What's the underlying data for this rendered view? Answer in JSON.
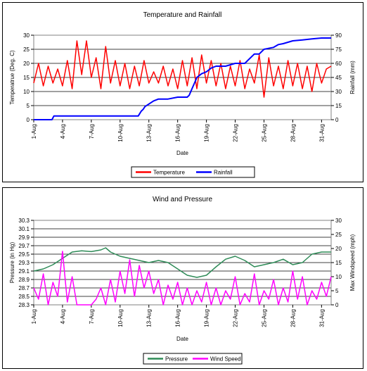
{
  "chart_data": [
    {
      "type": "line",
      "title": "Temperature and Rainfall",
      "xlabel": "Date",
      "ylabel": "Temperatrue (Deg. C)",
      "y2label": "Rainfall (mm)",
      "x_tick_labels": [
        "1-Aug",
        "4-Aug",
        "7-Aug",
        "10-Aug",
        "13-Aug",
        "16-Aug",
        "19-Aug",
        "22-Aug",
        "25-Aug",
        "28-Aug",
        "31-Aug"
      ],
      "x_tick_days": [
        1,
        4,
        7,
        10,
        13,
        16,
        19,
        22,
        25,
        28,
        31
      ],
      "xlim": [
        1,
        32
      ],
      "ylim": [
        0,
        30
      ],
      "y_ticks": [
        0,
        5,
        10,
        15,
        20,
        25,
        30
      ],
      "y2lim": [
        0,
        90
      ],
      "y2_ticks": [
        0,
        15,
        30,
        45,
        60,
        75,
        90
      ],
      "grid": true,
      "legend": "bottom",
      "series": [
        {
          "name": "Temperature",
          "axis": "left",
          "color": "#ff0000",
          "x": [
            1.0,
            1.5,
            2.0,
            2.5,
            3.0,
            3.5,
            4.0,
            4.5,
            5.0,
            5.5,
            6.0,
            6.5,
            7.0,
            7.5,
            8.0,
            8.5,
            9.0,
            9.5,
            10.0,
            10.5,
            11.0,
            11.5,
            12.0,
            12.5,
            13.0,
            13.5,
            14.0,
            14.5,
            15.0,
            15.5,
            16.0,
            16.5,
            17.0,
            17.5,
            18.0,
            18.5,
            19.0,
            19.5,
            20.0,
            20.5,
            21.0,
            21.5,
            22.0,
            22.5,
            23.0,
            23.5,
            24.0,
            24.5,
            25.0,
            25.5,
            26.0,
            26.5,
            27.0,
            27.5,
            28.0,
            28.5,
            29.0,
            29.5,
            30.0,
            30.5,
            31.0,
            31.5,
            32.0
          ],
          "y": [
            13,
            20,
            12,
            19,
            13,
            18,
            12,
            21,
            11,
            28,
            16,
            28,
            15,
            22,
            11,
            26,
            13,
            21,
            12,
            20,
            11,
            19,
            12,
            21,
            13,
            17,
            13,
            19,
            12,
            18,
            11,
            21,
            12,
            22,
            11,
            23,
            13,
            21,
            12,
            20,
            11,
            19,
            12,
            21,
            11,
            18,
            13,
            23,
            8,
            22,
            12,
            19,
            11,
            21,
            12,
            20,
            11,
            19,
            10,
            20,
            13,
            18,
            19
          ]
        },
        {
          "name": "Rainfall",
          "axis": "right",
          "color": "#0000ff",
          "x": [
            1.0,
            2.9,
            3.1,
            9.0,
            11.0,
            11.9,
            12.2,
            12.4,
            12.6,
            13.5,
            14.0,
            15.0,
            16.0,
            17.0,
            17.2,
            17.5,
            17.8,
            18.0,
            18.5,
            19.0,
            19.5,
            20.0,
            21.0,
            22.0,
            23.0,
            24.0,
            24.5,
            25.0,
            26.0,
            26.5,
            27.0,
            28.0,
            29.0,
            30.0,
            31.0,
            32.0
          ],
          "y": [
            0,
            0,
            4,
            4,
            4,
            4,
            9,
            11,
            14,
            20,
            22,
            22,
            24,
            24,
            26,
            33,
            40,
            45,
            49,
            51,
            55,
            57,
            57,
            60,
            60,
            70,
            70,
            75,
            77,
            80,
            81,
            84,
            85,
            86,
            87,
            87
          ]
        }
      ]
    },
    {
      "type": "line",
      "title": "Wind and Pressure",
      "xlabel": "Date",
      "ylabel": "Pressure (in Hg)",
      "y2label": "Max Windspeed (mph)",
      "x_tick_labels": [
        "1-Aug",
        "4-Aug",
        "7-Aug",
        "10-Aug",
        "13-Aug",
        "16-Aug",
        "19-Aug",
        "22-Aug",
        "25-Aug",
        "28-Aug",
        "31-Aug"
      ],
      "x_tick_days": [
        1,
        4,
        7,
        10,
        13,
        16,
        19,
        22,
        25,
        28,
        31
      ],
      "xlim": [
        1,
        32
      ],
      "ylim": [
        28.3,
        30.3
      ],
      "y_ticks": [
        28.3,
        28.5,
        28.7,
        28.9,
        29.1,
        29.3,
        29.5,
        29.7,
        29.9,
        30.1,
        30.3
      ],
      "y2lim": [
        0,
        30
      ],
      "y2_ticks": [
        0,
        5,
        10,
        15,
        20,
        25,
        30
      ],
      "grid": true,
      "legend": "bottom",
      "series": [
        {
          "name": "Pressure",
          "axis": "left",
          "color": "#2e8b57",
          "x": [
            1.0,
            2.0,
            3.0,
            4.0,
            5.0,
            6.0,
            7.0,
            8.0,
            8.5,
            9.0,
            10.0,
            11.0,
            12.0,
            13.0,
            14.0,
            15.0,
            16.0,
            17.0,
            18.0,
            19.0,
            20.0,
            21.0,
            22.0,
            23.0,
            24.0,
            25.0,
            26.0,
            27.0,
            28.0,
            29.0,
            30.0,
            31.0,
            32.0
          ],
          "y": [
            29.1,
            29.15,
            29.25,
            29.4,
            29.55,
            29.58,
            29.56,
            29.6,
            29.65,
            29.55,
            29.45,
            29.4,
            29.35,
            29.3,
            29.35,
            29.3,
            29.15,
            29.0,
            28.95,
            29.0,
            29.2,
            29.38,
            29.45,
            29.35,
            29.2,
            29.25,
            29.3,
            29.38,
            29.25,
            29.3,
            29.5,
            29.55,
            29.55
          ]
        },
        {
          "name": "Wind Speed",
          "axis": "right",
          "color": "#ff00ff",
          "x": [
            1.0,
            1.5,
            2.0,
            2.5,
            3.0,
            3.5,
            4.0,
            4.5,
            5.0,
            5.5,
            6.0,
            6.5,
            7.0,
            7.5,
            8.0,
            8.5,
            9.0,
            9.5,
            10.0,
            10.5,
            11.0,
            11.5,
            12.0,
            12.5,
            13.0,
            13.5,
            14.0,
            14.5,
            15.0,
            15.5,
            16.0,
            16.5,
            17.0,
            17.5,
            18.0,
            18.5,
            19.0,
            19.5,
            20.0,
            20.5,
            21.0,
            21.5,
            22.0,
            22.5,
            23.0,
            23.5,
            24.0,
            24.5,
            25.0,
            25.5,
            26.0,
            26.5,
            27.0,
            27.5,
            28.0,
            28.5,
            29.0,
            29.5,
            30.0,
            30.5,
            31.0,
            31.5,
            32.0
          ],
          "y": [
            6,
            2,
            11,
            0,
            8,
            3,
            19,
            1,
            10,
            0,
            0,
            0,
            0,
            2,
            6,
            0,
            9,
            1,
            12,
            4,
            16,
            3,
            14,
            6,
            12,
            4,
            9,
            0,
            7,
            2,
            8,
            0,
            6,
            0,
            5,
            1,
            8,
            0,
            6,
            0,
            5,
            2,
            10,
            0,
            4,
            1,
            11,
            0,
            5,
            2,
            9,
            0,
            6,
            1,
            12,
            2,
            10,
            0,
            5,
            2,
            8,
            3,
            10
          ]
        }
      ]
    }
  ]
}
